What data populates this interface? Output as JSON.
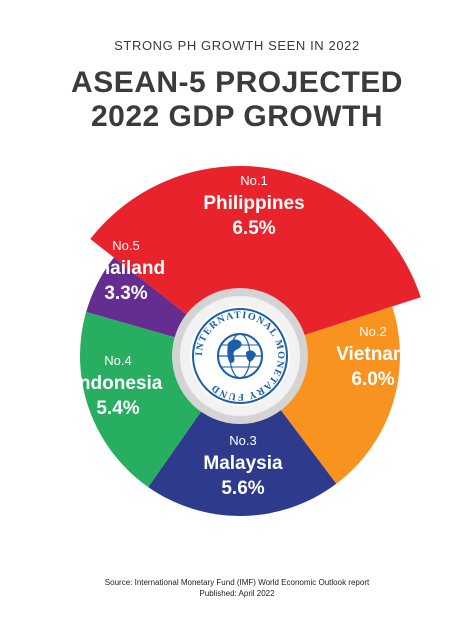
{
  "header": {
    "subtitle": "STRONG PH GROWTH SEEN IN 2022",
    "title_line1": "ASEAN-5 PROJECTED",
    "title_line2": "2022 GDP GROWTH"
  },
  "colors": {
    "Philippines": "#e8232b",
    "Vietnam": "#f7931e",
    "Malaysia": "#2e3a8c",
    "Indonesia": "#27ae60",
    "Thailand": "#662d91",
    "center_ring": "#c8c8c8",
    "imf_blue": "#1b5fa8"
  },
  "logo": {
    "icon": "imf-seal-icon",
    "text": "INTERNATIONAL MONETARY FUND"
  },
  "chart_data": {
    "type": "pie",
    "categories": [
      "Philippines",
      "Vietnam",
      "Malaysia",
      "Indonesia",
      "Thailand"
    ],
    "values": [
      6.5,
      6.0,
      5.6,
      5.4,
      3.3
    ],
    "rank_labels": [
      "No.1",
      "No.2",
      "No.3",
      "No.4",
      "No.5"
    ],
    "value_labels": [
      "6.5%",
      "6.0%",
      "5.6%",
      "5.4%",
      "3.3%"
    ],
    "variant": "radial donut, slice radius grows with rank",
    "title": "ASEAN-5 PROJECTED 2022 GDP GROWTH"
  },
  "footer": {
    "source": "Source: International Monetary Fund (IMF) World Economic Outlook report",
    "published": "Published: April 2022"
  }
}
